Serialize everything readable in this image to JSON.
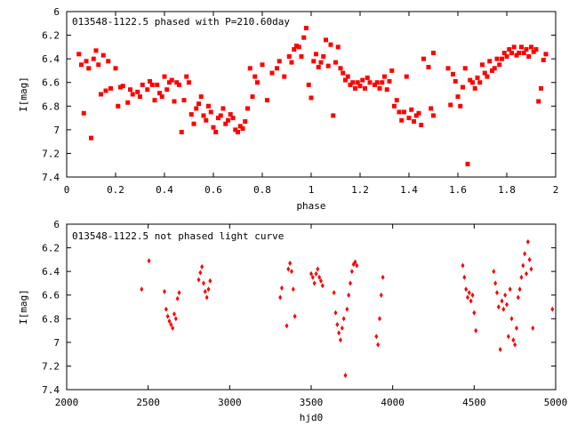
{
  "chart_data": [
    {
      "type": "scatter",
      "title": "013548-1122.5 phased with P=210.60day",
      "xlabel": "phase",
      "ylabel": "I[mag]",
      "xlim": [
        0,
        2
      ],
      "ylim": [
        6,
        7.4
      ],
      "y_inverted": true,
      "xticks": [
        "0",
        "0.2",
        "0.4",
        "0.6",
        "0.8",
        "1",
        "1.2",
        "1.4",
        "1.6",
        "1.8",
        "2"
      ],
      "yticks": [
        "6",
        "6.2",
        "6.4",
        "6.6",
        "6.8",
        "7",
        "7.2",
        "7.4"
      ],
      "marker": "filled-square",
      "color": "#ff0000",
      "points": [
        [
          0.05,
          6.36
        ],
        [
          0.06,
          6.45
        ],
        [
          0.07,
          6.86
        ],
        [
          0.08,
          6.42
        ],
        [
          0.09,
          6.48
        ],
        [
          0.1,
          7.07
        ],
        [
          0.11,
          6.4
        ],
        [
          0.12,
          6.33
        ],
        [
          0.13,
          6.45
        ],
        [
          0.14,
          6.7
        ],
        [
          0.15,
          6.37
        ],
        [
          0.16,
          6.67
        ],
        [
          0.17,
          6.42
        ],
        [
          0.18,
          6.65
        ],
        [
          0.2,
          6.48
        ],
        [
          0.21,
          6.8
        ],
        [
          0.22,
          6.64
        ],
        [
          0.23,
          6.63
        ],
        [
          0.25,
          6.77
        ],
        [
          0.26,
          6.66
        ],
        [
          0.27,
          6.7
        ],
        [
          0.29,
          6.68
        ],
        [
          0.3,
          6.72
        ],
        [
          0.31,
          6.62
        ],
        [
          0.33,
          6.66
        ],
        [
          0.34,
          6.59
        ],
        [
          0.35,
          6.62
        ],
        [
          0.36,
          6.75
        ],
        [
          0.37,
          6.62
        ],
        [
          0.38,
          6.69
        ],
        [
          0.39,
          6.72
        ],
        [
          0.4,
          6.55
        ],
        [
          0.41,
          6.66
        ],
        [
          0.42,
          6.6
        ],
        [
          0.43,
          6.58
        ],
        [
          0.44,
          6.76
        ],
        [
          0.45,
          6.6
        ],
        [
          0.46,
          6.62
        ],
        [
          0.47,
          7.02
        ],
        [
          0.48,
          6.75
        ],
        [
          0.49,
          6.55
        ],
        [
          0.5,
          6.6
        ],
        [
          0.51,
          6.87
        ],
        [
          0.52,
          6.95
        ],
        [
          0.53,
          6.82
        ],
        [
          0.54,
          6.78
        ],
        [
          0.55,
          6.72
        ],
        [
          0.56,
          6.88
        ],
        [
          0.57,
          6.92
        ],
        [
          0.58,
          6.8
        ],
        [
          0.59,
          6.85
        ],
        [
          0.6,
          6.98
        ],
        [
          0.61,
          7.02
        ],
        [
          0.62,
          6.9
        ],
        [
          0.63,
          6.88
        ],
        [
          0.64,
          6.82
        ],
        [
          0.65,
          6.95
        ],
        [
          0.66,
          6.92
        ],
        [
          0.67,
          6.87
        ],
        [
          0.68,
          6.9
        ],
        [
          0.69,
          7.0
        ],
        [
          0.7,
          7.02
        ],
        [
          0.71,
          6.97
        ],
        [
          0.72,
          6.99
        ],
        [
          0.73,
          6.93
        ],
        [
          0.74,
          6.82
        ],
        [
          0.75,
          6.48
        ],
        [
          0.76,
          6.72
        ],
        [
          0.77,
          6.55
        ],
        [
          0.78,
          6.6
        ],
        [
          0.8,
          6.45
        ],
        [
          0.82,
          6.75
        ],
        [
          0.84,
          6.52
        ],
        [
          0.86,
          6.48
        ],
        [
          0.87,
          6.42
        ],
        [
          0.89,
          6.55
        ],
        [
          0.91,
          6.38
        ],
        [
          0.92,
          6.43
        ],
        [
          0.93,
          6.32
        ],
        [
          0.94,
          6.29
        ],
        [
          0.95,
          6.3
        ],
        [
          0.96,
          6.38
        ],
        [
          0.97,
          6.22
        ],
        [
          0.98,
          6.14
        ],
        [
          0.99,
          6.62
        ],
        [
          1.0,
          6.73
        ],
        [
          1.01,
          6.42
        ],
        [
          1.02,
          6.36
        ],
        [
          1.03,
          6.47
        ],
        [
          1.04,
          6.43
        ],
        [
          1.05,
          6.38
        ],
        [
          1.06,
          6.24
        ],
        [
          1.07,
          6.46
        ],
        [
          1.08,
          6.28
        ],
        [
          1.09,
          6.88
        ],
        [
          1.1,
          6.43
        ],
        [
          1.11,
          6.3
        ],
        [
          1.12,
          6.48
        ],
        [
          1.13,
          6.52
        ],
        [
          1.14,
          6.58
        ],
        [
          1.15,
          6.55
        ],
        [
          1.16,
          6.62
        ],
        [
          1.17,
          6.6
        ],
        [
          1.18,
          6.65
        ],
        [
          1.19,
          6.6
        ],
        [
          1.2,
          6.63
        ],
        [
          1.21,
          6.58
        ],
        [
          1.22,
          6.65
        ],
        [
          1.23,
          6.56
        ],
        [
          1.24,
          6.6
        ],
        [
          1.26,
          6.62
        ],
        [
          1.27,
          6.6
        ],
        [
          1.28,
          6.65
        ],
        [
          1.29,
          6.6
        ],
        [
          1.3,
          6.55
        ],
        [
          1.31,
          6.66
        ],
        [
          1.32,
          6.59
        ],
        [
          1.33,
          6.5
        ],
        [
          1.34,
          6.8
        ],
        [
          1.35,
          6.75
        ],
        [
          1.36,
          6.85
        ],
        [
          1.37,
          6.92
        ],
        [
          1.38,
          6.85
        ],
        [
          1.39,
          6.55
        ],
        [
          1.4,
          6.9
        ],
        [
          1.41,
          6.83
        ],
        [
          1.42,
          6.93
        ],
        [
          1.43,
          6.88
        ],
        [
          1.44,
          6.86
        ],
        [
          1.45,
          6.96
        ],
        [
          1.46,
          6.4
        ],
        [
          1.48,
          6.47
        ],
        [
          1.49,
          6.82
        ],
        [
          1.5,
          6.88
        ],
        [
          1.5,
          6.35
        ],
        [
          1.56,
          6.48
        ],
        [
          1.57,
          6.79
        ],
        [
          1.58,
          6.53
        ],
        [
          1.59,
          6.59
        ],
        [
          1.6,
          6.72
        ],
        [
          1.61,
          6.8
        ],
        [
          1.62,
          6.64
        ],
        [
          1.63,
          6.48
        ],
        [
          1.64,
          7.29
        ],
        [
          1.65,
          6.58
        ],
        [
          1.66,
          6.6
        ],
        [
          1.67,
          6.65
        ],
        [
          1.68,
          6.56
        ],
        [
          1.69,
          6.6
        ],
        [
          1.7,
          6.45
        ],
        [
          1.71,
          6.52
        ],
        [
          1.72,
          6.55
        ],
        [
          1.73,
          6.42
        ],
        [
          1.74,
          6.5
        ],
        [
          1.75,
          6.48
        ],
        [
          1.76,
          6.4
        ],
        [
          1.77,
          6.45
        ],
        [
          1.78,
          6.4
        ],
        [
          1.79,
          6.35
        ],
        [
          1.8,
          6.38
        ],
        [
          1.81,
          6.32
        ],
        [
          1.82,
          6.35
        ],
        [
          1.83,
          6.3
        ],
        [
          1.84,
          6.37
        ],
        [
          1.85,
          6.35
        ],
        [
          1.86,
          6.3
        ],
        [
          1.87,
          6.35
        ],
        [
          1.88,
          6.32
        ],
        [
          1.89,
          6.38
        ],
        [
          1.9,
          6.3
        ],
        [
          1.91,
          6.34
        ],
        [
          1.92,
          6.32
        ],
        [
          1.93,
          6.76
        ],
        [
          1.94,
          6.65
        ],
        [
          1.95,
          6.41
        ],
        [
          1.96,
          6.36
        ]
      ]
    },
    {
      "type": "scatter",
      "title": "013548-1122.5 not phased light curve",
      "xlabel": "hjd0",
      "ylabel": "I[mag]",
      "xlim": [
        2000,
        5000
      ],
      "ylim": [
        6,
        7.4
      ],
      "y_inverted": true,
      "xticks": [
        "2000",
        "2500",
        "3000",
        "3500",
        "4000",
        "4500",
        "5000"
      ],
      "yticks": [
        "6",
        "6.2",
        "6.4",
        "6.6",
        "6.8",
        "7",
        "7.2",
        "7.4"
      ],
      "marker": "filled-diamond",
      "color": "#ff0000",
      "points": [
        [
          2460,
          6.55
        ],
        [
          2505,
          6.31
        ],
        [
          2600,
          6.57
        ],
        [
          2610,
          6.72
        ],
        [
          2620,
          6.78
        ],
        [
          2630,
          6.82
        ],
        [
          2640,
          6.85
        ],
        [
          2650,
          6.88
        ],
        [
          2660,
          6.76
        ],
        [
          2670,
          6.8
        ],
        [
          2680,
          6.63
        ],
        [
          2690,
          6.58
        ],
        [
          2810,
          6.47
        ],
        [
          2820,
          6.41
        ],
        [
          2830,
          6.36
        ],
        [
          2840,
          6.5
        ],
        [
          2850,
          6.57
        ],
        [
          2860,
          6.62
        ],
        [
          2870,
          6.55
        ],
        [
          2880,
          6.48
        ],
        [
          3310,
          6.62
        ],
        [
          3320,
          6.54
        ],
        [
          3350,
          6.86
        ],
        [
          3360,
          6.38
        ],
        [
          3370,
          6.33
        ],
        [
          3380,
          6.4
        ],
        [
          3390,
          6.55
        ],
        [
          3400,
          6.78
        ],
        [
          3500,
          6.42
        ],
        [
          3510,
          6.45
        ],
        [
          3520,
          6.5
        ],
        [
          3530,
          6.42
        ],
        [
          3540,
          6.38
        ],
        [
          3550,
          6.45
        ],
        [
          3560,
          6.48
        ],
        [
          3570,
          6.52
        ],
        [
          3640,
          6.58
        ],
        [
          3650,
          6.75
        ],
        [
          3660,
          6.85
        ],
        [
          3670,
          6.92
        ],
        [
          3680,
          6.98
        ],
        [
          3690,
          6.88
        ],
        [
          3700,
          6.8
        ],
        [
          3710,
          7.28
        ],
        [
          3720,
          6.72
        ],
        [
          3730,
          6.6
        ],
        [
          3740,
          6.5
        ],
        [
          3750,
          6.4
        ],
        [
          3760,
          6.34
        ],
        [
          3770,
          6.32
        ],
        [
          3780,
          6.35
        ],
        [
          3900,
          6.95
        ],
        [
          3910,
          7.02
        ],
        [
          3920,
          6.8
        ],
        [
          3930,
          6.6
        ],
        [
          3940,
          6.45
        ],
        [
          4430,
          6.35
        ],
        [
          4440,
          6.45
        ],
        [
          4450,
          6.55
        ],
        [
          4460,
          6.62
        ],
        [
          4470,
          6.58
        ],
        [
          4480,
          6.65
        ],
        [
          4490,
          6.6
        ],
        [
          4500,
          6.75
        ],
        [
          4510,
          6.9
        ],
        [
          4620,
          6.4
        ],
        [
          4630,
          6.5
        ],
        [
          4640,
          6.58
        ],
        [
          4650,
          6.7
        ],
        [
          4660,
          7.06
        ],
        [
          4670,
          6.65
        ],
        [
          4680,
          6.72
        ],
        [
          4690,
          6.6
        ],
        [
          4700,
          6.68
        ],
        [
          4710,
          6.95
        ],
        [
          4720,
          6.55
        ],
        [
          4730,
          6.8
        ],
        [
          4740,
          6.98
        ],
        [
          4750,
          7.02
        ],
        [
          4760,
          6.88
        ],
        [
          4770,
          6.62
        ],
        [
          4780,
          6.55
        ],
        [
          4790,
          6.45
        ],
        [
          4800,
          6.35
        ],
        [
          4810,
          6.25
        ],
        [
          4820,
          6.42
        ],
        [
          4830,
          6.15
        ],
        [
          4840,
          6.3
        ],
        [
          4850,
          6.38
        ],
        [
          4860,
          6.88
        ],
        [
          4980,
          6.72
        ]
      ]
    }
  ]
}
